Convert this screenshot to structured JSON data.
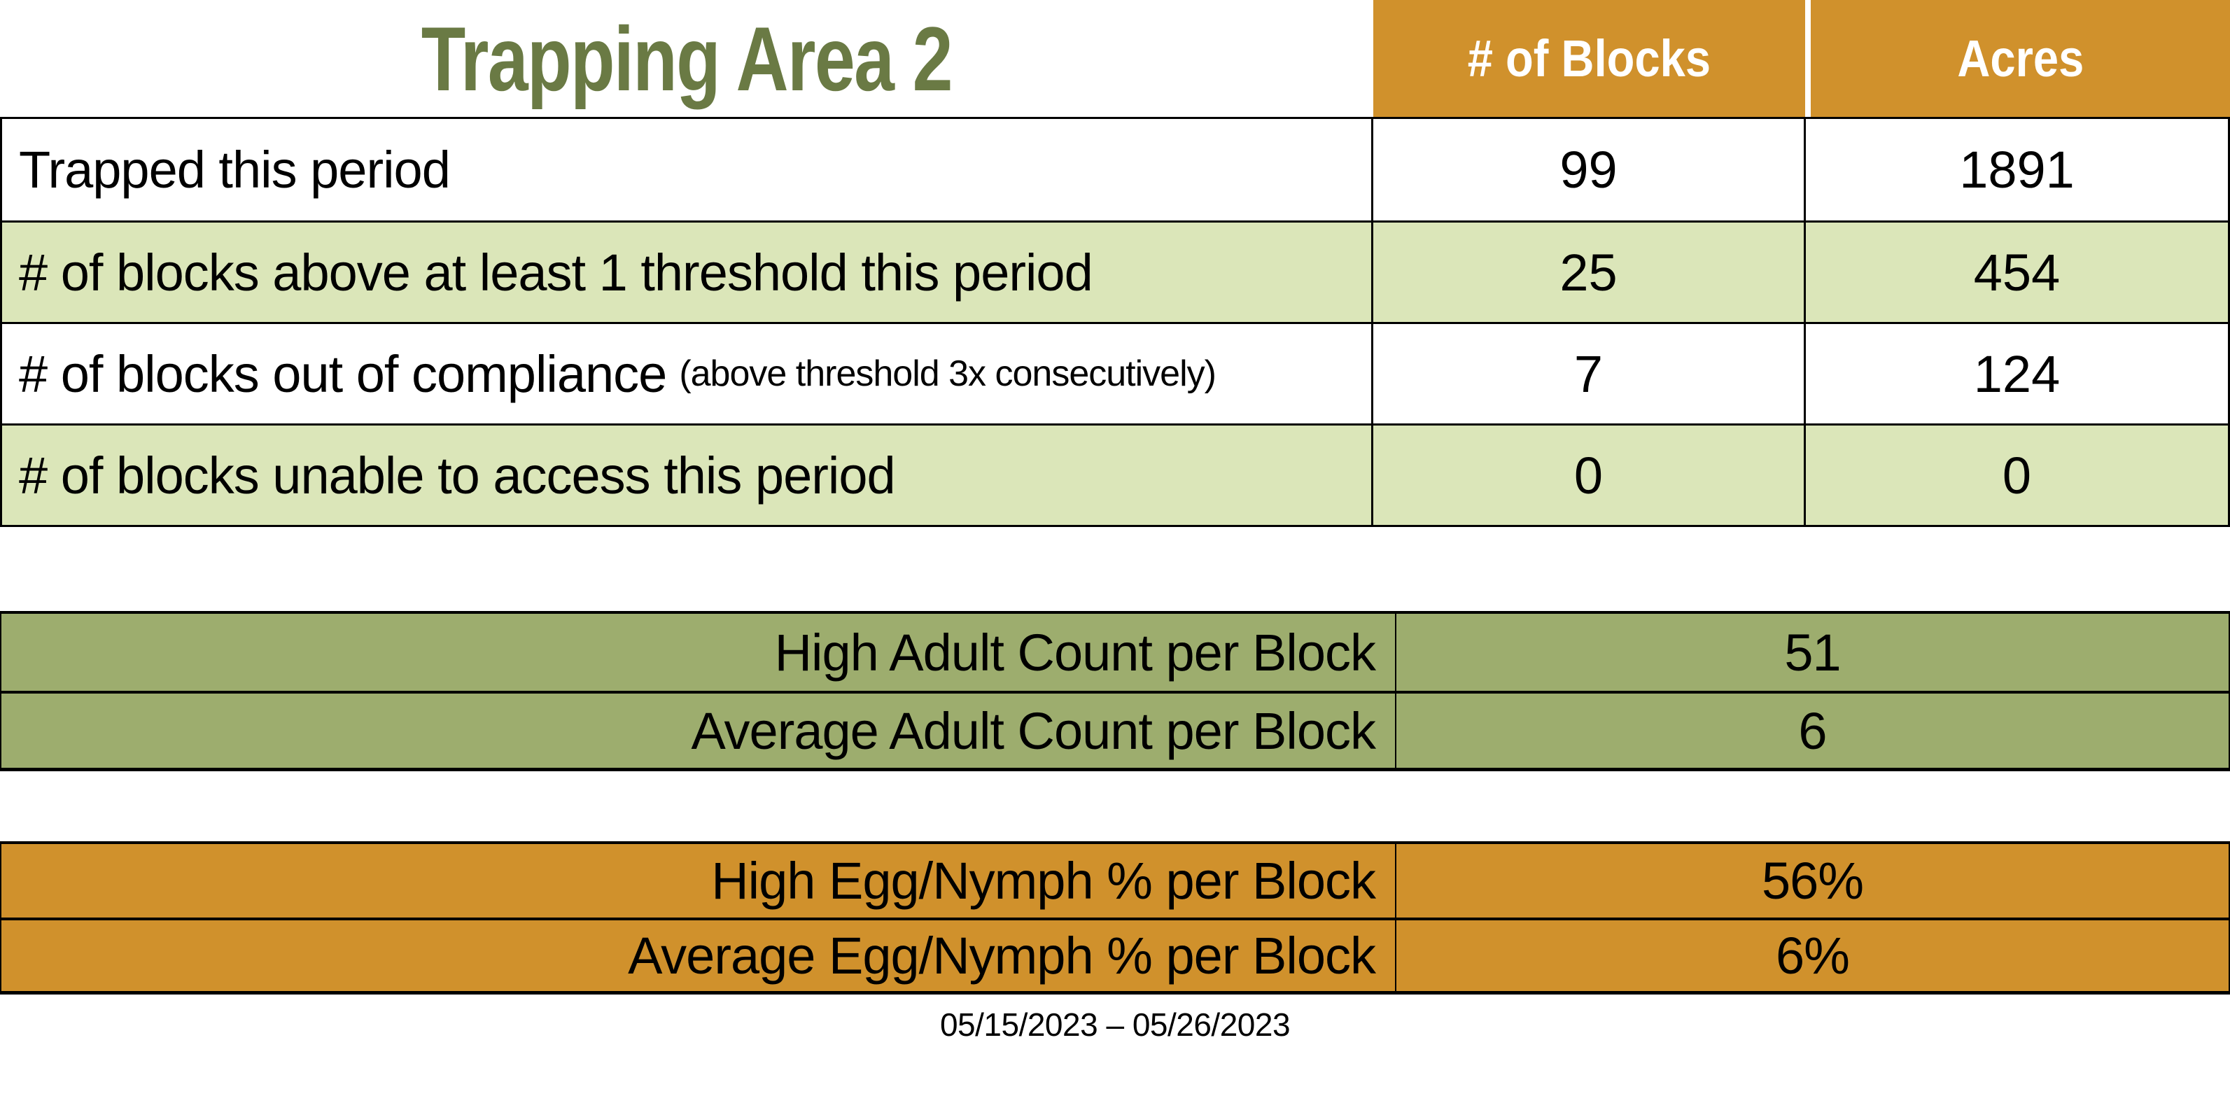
{
  "title": "Trapping Area 2",
  "summary_table": {
    "col_blocks": "# of Blocks",
    "col_acres": "Acres",
    "rows": [
      {
        "label": "Trapped this period",
        "note": "",
        "blocks": "99",
        "acres": "1891"
      },
      {
        "label": "# of blocks above at least 1 threshold this period",
        "note": "",
        "blocks": "25",
        "acres": "454"
      },
      {
        "label": "# of blocks out of compliance",
        "note": "(above threshold 3x consecutively)",
        "blocks": "7",
        "acres": "124"
      },
      {
        "label": "# of blocks unable to access this period",
        "note": "",
        "blocks": "0",
        "acres": "0"
      }
    ]
  },
  "adult_table": {
    "rows": [
      {
        "label": "High Adult Count per Block",
        "value": "51"
      },
      {
        "label": "Average Adult Count per Block",
        "value": "6"
      }
    ]
  },
  "egg_table": {
    "rows": [
      {
        "label": "High Egg/Nymph % per Block",
        "value": "56%"
      },
      {
        "label": "Average Egg/Nymph % per Block",
        "value": "6%"
      }
    ]
  },
  "date_range": "05/15/2023 – 05/26/2023",
  "colors": {
    "accent_orange": "#D0912C",
    "light_green": "#DBE6B9",
    "olive_green": "#9DAD6E",
    "title_green": "#6A7A44"
  }
}
